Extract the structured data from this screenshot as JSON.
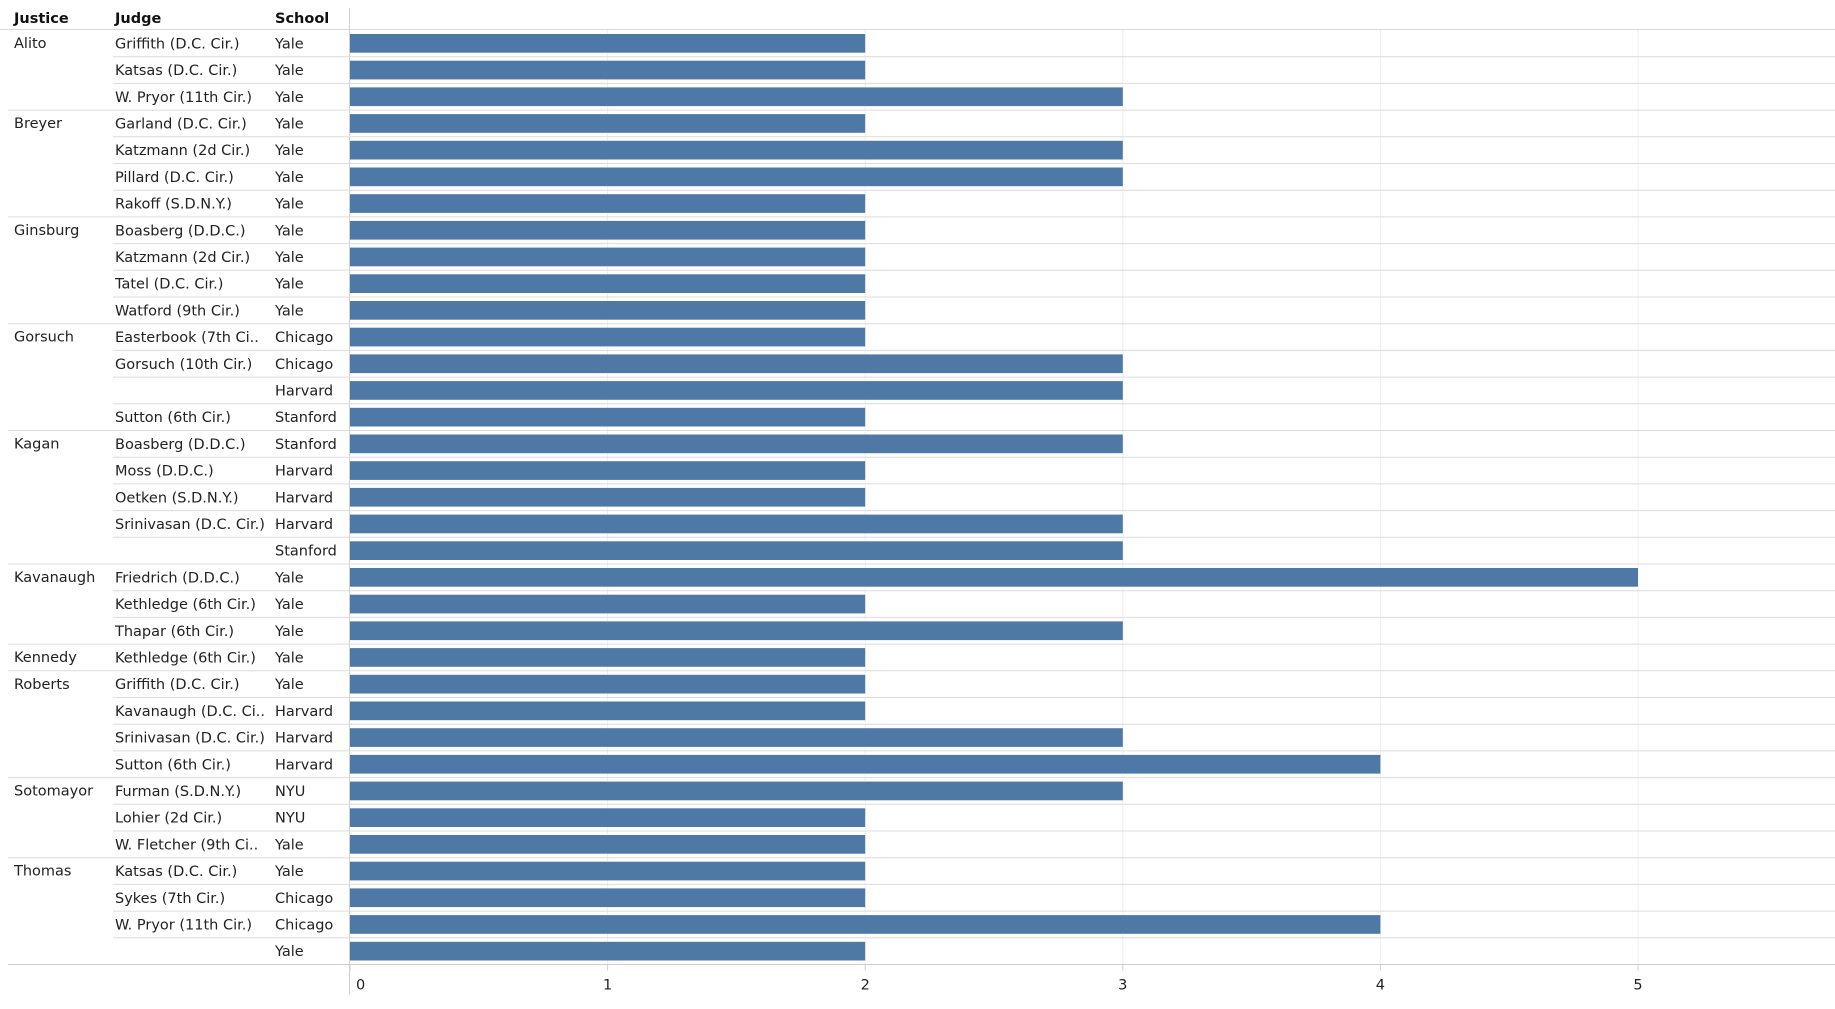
{
  "chart_data": {
    "type": "bar",
    "orientation": "horizontal",
    "headers": {
      "justice": "Justice",
      "judge": "Judge",
      "school": "School"
    },
    "rows": [
      {
        "justice": "Alito",
        "judge": "Griffith (D.C. Cir.)",
        "school": "Yale",
        "value": 2
      },
      {
        "justice": "",
        "judge": "Katsas (D.C. Cir.)",
        "school": "Yale",
        "value": 2
      },
      {
        "justice": "",
        "judge": "W. Pryor (11th Cir.)",
        "school": "Yale",
        "value": 3
      },
      {
        "justice": "Breyer",
        "judge": "Garland (D.C. Cir.)",
        "school": "Yale",
        "value": 2
      },
      {
        "justice": "",
        "judge": "Katzmann (2d Cir.)",
        "school": "Yale",
        "value": 3
      },
      {
        "justice": "",
        "judge": "Pillard (D.C. Cir.)",
        "school": "Yale",
        "value": 3
      },
      {
        "justice": "",
        "judge": "Rakoff (S.D.N.Y.)",
        "school": "Yale",
        "value": 2
      },
      {
        "justice": "Ginsburg",
        "judge": "Boasberg (D.D.C.)",
        "school": "Yale",
        "value": 2
      },
      {
        "justice": "",
        "judge": "Katzmann (2d Cir.)",
        "school": "Yale",
        "value": 2
      },
      {
        "justice": "",
        "judge": "Tatel (D.C. Cir.)",
        "school": "Yale",
        "value": 2
      },
      {
        "justice": "",
        "judge": "Watford (9th Cir.)",
        "school": "Yale",
        "value": 2
      },
      {
        "justice": "Gorsuch",
        "judge": "Easterbook (7th Ci..",
        "school": "Chicago",
        "value": 2
      },
      {
        "justice": "",
        "judge": "Gorsuch (10th Cir.)",
        "school": "Chicago",
        "value": 3
      },
      {
        "justice": "",
        "judge": "",
        "school": "Harvard",
        "value": 3
      },
      {
        "justice": "",
        "judge": "Sutton (6th Cir.)",
        "school": "Stanford",
        "value": 2
      },
      {
        "justice": "Kagan",
        "judge": "Boasberg (D.D.C.)",
        "school": "Stanford",
        "value": 3
      },
      {
        "justice": "",
        "judge": "Moss (D.D.C.)",
        "school": "Harvard",
        "value": 2
      },
      {
        "justice": "",
        "judge": "Oetken (S.D.N.Y.)",
        "school": "Harvard",
        "value": 2
      },
      {
        "justice": "",
        "judge": "Srinivasan (D.C. Cir.)",
        "school": "Harvard",
        "value": 3
      },
      {
        "justice": "",
        "judge": "",
        "school": "Stanford",
        "value": 3
      },
      {
        "justice": "Kavanaugh",
        "judge": "Friedrich (D.D.C.)",
        "school": "Yale",
        "value": 5
      },
      {
        "justice": "",
        "judge": "Kethledge (6th Cir.)",
        "school": "Yale",
        "value": 2
      },
      {
        "justice": "",
        "judge": "Thapar (6th Cir.)",
        "school": "Yale",
        "value": 3
      },
      {
        "justice": "Kennedy",
        "judge": "Kethledge (6th Cir.)",
        "school": "Yale",
        "value": 2
      },
      {
        "justice": "Roberts",
        "judge": "Griffith (D.C. Cir.)",
        "school": "Yale",
        "value": 2
      },
      {
        "justice": "",
        "judge": "Kavanaugh (D.C. Ci..",
        "school": "Harvard",
        "value": 2
      },
      {
        "justice": "",
        "judge": "Srinivasan (D.C. Cir.)",
        "school": "Harvard",
        "value": 3
      },
      {
        "justice": "",
        "judge": "Sutton (6th Cir.)",
        "school": "Harvard",
        "value": 4
      },
      {
        "justice": "Sotomayor",
        "judge": "Furman (S.D.N.Y.)",
        "school": "NYU",
        "value": 3
      },
      {
        "justice": "",
        "judge": "Lohier (2d Cir.)",
        "school": "NYU",
        "value": 2
      },
      {
        "justice": "",
        "judge": "W. Fletcher (9th Ci..",
        "school": "Yale",
        "value": 2
      },
      {
        "justice": "Thomas",
        "judge": "Katsas (D.C. Cir.)",
        "school": "Yale",
        "value": 2
      },
      {
        "justice": "",
        "judge": "Sykes (7th Cir.)",
        "school": "Chicago",
        "value": 2
      },
      {
        "justice": "",
        "judge": "W. Pryor (11th Cir.)",
        "school": "Chicago",
        "value": 4
      },
      {
        "justice": "",
        "judge": "",
        "school": "Yale",
        "value": 2
      }
    ],
    "xlim": [
      0,
      5.7
    ],
    "xticks": [
      0,
      1,
      2,
      3,
      4,
      5
    ],
    "xlabel": "",
    "ylabel": "",
    "bar_color": "#4e79a7",
    "grid": true
  }
}
